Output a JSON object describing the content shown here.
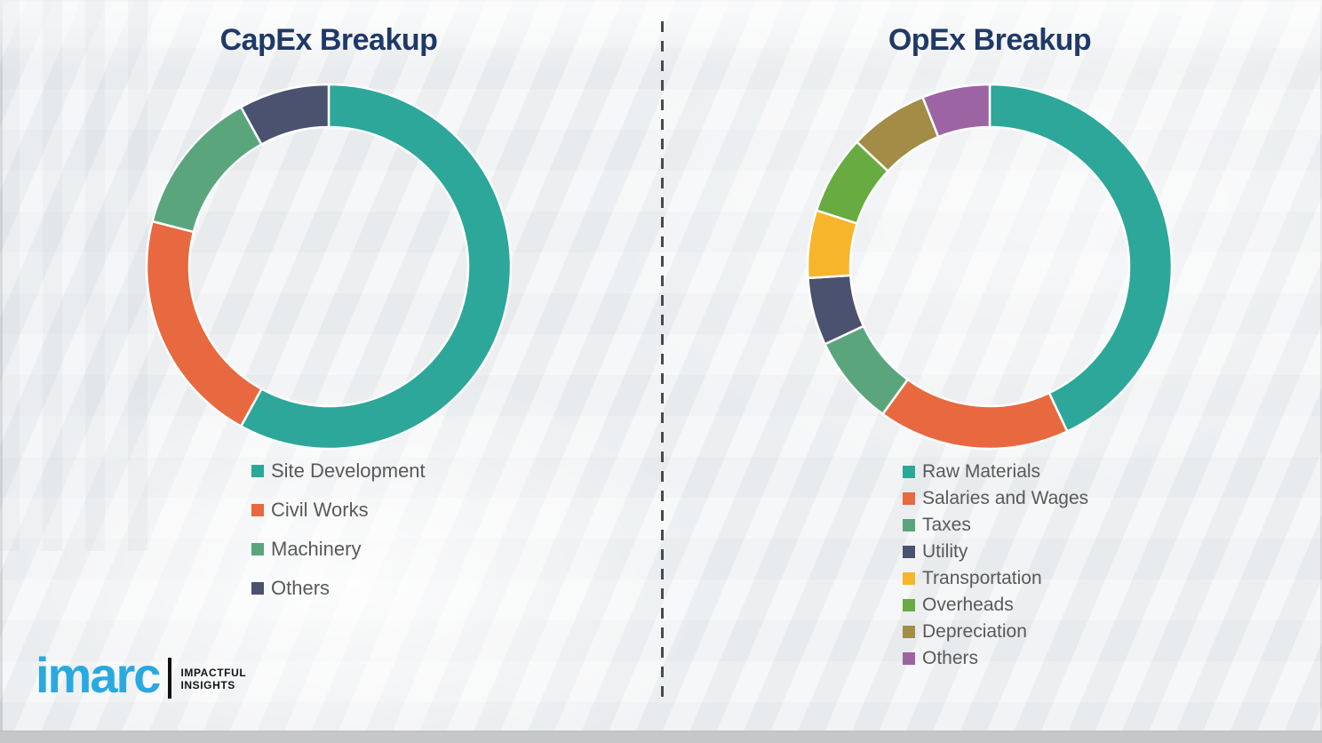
{
  "brand": {
    "logo_text": "imarc",
    "tagline_line1": "IMPACTFUL",
    "tagline_line2": "INSIGHTS",
    "logo_color": "#2aa9e1"
  },
  "colors": {
    "title_text": "#1f3968",
    "legend_text": "#595959",
    "divider_dash": "#4a4a4a",
    "slice_gap": "#ffffff",
    "background": "#eef0f2"
  },
  "chart_data": [
    {
      "type": "pie",
      "subtype": "donut",
      "title": "CapEx Breakup",
      "start_angle_deg": 0,
      "direction": "clockwise",
      "legend_position": "below",
      "slices": [
        {
          "label": "Site Development",
          "value": 58,
          "color": "#2ca79a"
        },
        {
          "label": "Civil Works",
          "value": 21,
          "color": "#e8683f"
        },
        {
          "label": "Machinery",
          "value": 13,
          "color": "#5ba57d"
        },
        {
          "label": "Others",
          "value": 8,
          "color": "#4a5270"
        }
      ]
    },
    {
      "type": "pie",
      "subtype": "donut",
      "title": "OpEx Breakup",
      "start_angle_deg": 0,
      "direction": "clockwise",
      "legend_position": "below",
      "slices": [
        {
          "label": "Raw Materials",
          "value": 43,
          "color": "#2ca79a"
        },
        {
          "label": "Salaries and Wages",
          "value": 17,
          "color": "#e8683f"
        },
        {
          "label": "Taxes",
          "value": 8,
          "color": "#5ba57d"
        },
        {
          "label": "Utility",
          "value": 6,
          "color": "#4a5270"
        },
        {
          "label": "Transportation",
          "value": 6,
          "color": "#f7b52b"
        },
        {
          "label": "Overheads",
          "value": 7,
          "color": "#68ab41"
        },
        {
          "label": "Depreciation",
          "value": 7,
          "color": "#a28c46"
        },
        {
          "label": "Others",
          "value": 6,
          "color": "#9d64a3"
        }
      ]
    }
  ]
}
